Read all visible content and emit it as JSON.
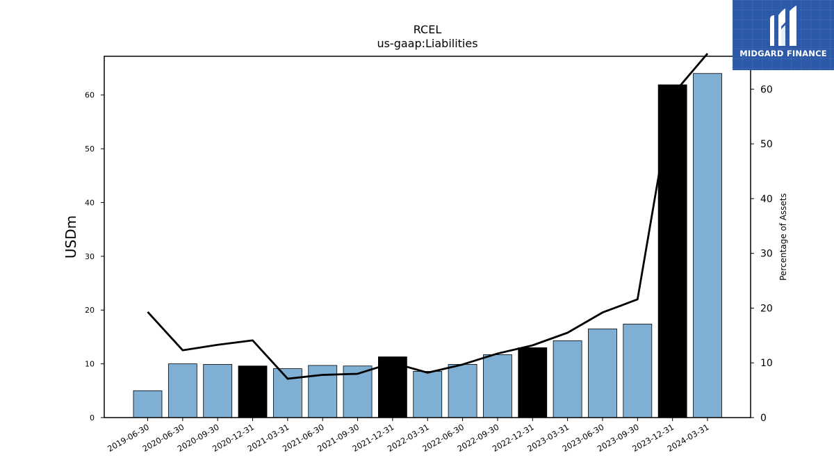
{
  "chart_data": {
    "type": "bar",
    "title": "RCEL",
    "subtitle": "us-gaap:Liabilities",
    "ylabel": "USDm",
    "y2label": "Percentage of Assets",
    "categories": [
      "2019-06-30",
      "2020-06-30",
      "2020-09-30",
      "2020-12-31",
      "2021-03-31",
      "2021-06-30",
      "2021-09-30",
      "2021-12-31",
      "2022-03-31",
      "2022-06-30",
      "2022-09-30",
      "2022-12-31",
      "2023-03-31",
      "2023-06-30",
      "2023-09-30",
      "2023-12-31",
      "2024-03-31"
    ],
    "series": [
      {
        "kind": "bar",
        "values": [
          5.0,
          10.0,
          9.9,
          9.6,
          9.1,
          9.7,
          9.6,
          11.3,
          8.6,
          9.9,
          11.7,
          13.0,
          14.3,
          16.5,
          17.4,
          61.9,
          64.0
        ],
        "colors": [
          "#7fb0d3",
          "#7fb0d3",
          "#7fb0d3",
          "#000000",
          "#7fb0d3",
          "#7fb0d3",
          "#7fb0d3",
          "#000000",
          "#7fb0d3",
          "#7fb0d3",
          "#7fb0d3",
          "#000000",
          "#7fb0d3",
          "#7fb0d3",
          "#7fb0d3",
          "#000000",
          "#7fb0d3"
        ]
      },
      {
        "kind": "line",
        "axis": "right",
        "values": [
          19.3,
          12.3,
          13.3,
          14.1,
          7.1,
          7.8,
          8.0,
          10.0,
          8.2,
          9.7,
          11.7,
          13.2,
          15.5,
          19.2,
          21.6,
          59.0,
          66.5
        ],
        "color": "#000000"
      }
    ],
    "ylim": [
      0,
      67.2
    ],
    "y2lim": [
      0,
      66.0
    ],
    "yticks": [
      0,
      10,
      20,
      30,
      40,
      50,
      60
    ],
    "y2ticks": [
      0,
      10,
      20,
      30,
      40,
      50,
      60
    ],
    "grid": false
  },
  "logo": {
    "text": "MIDGARD FINANCE",
    "bg": "#2d5aa8"
  }
}
